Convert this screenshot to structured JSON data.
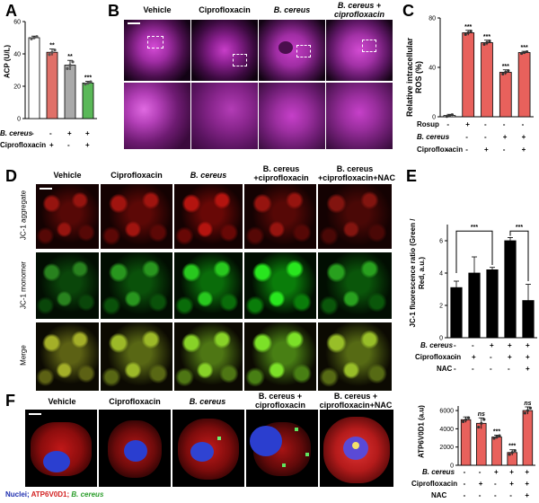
{
  "panels": {
    "A": {
      "letter": "A",
      "ylabel": "ACP (U/L)",
      "yticks": [
        "0",
        "20",
        "40",
        "60"
      ],
      "rows": [
        {
          "label": "B. cereus",
          "marks": [
            "-",
            "-",
            "+",
            "+"
          ]
        },
        {
          "label": "Ciprofloxacin",
          "marks": [
            "-",
            "+",
            "-",
            "+"
          ]
        }
      ],
      "sig": [
        "**",
        "**",
        "***"
      ]
    },
    "B": {
      "letter": "B",
      "headers": [
        "Vehicle",
        "Ciprofloxacin",
        "B. cereus",
        "B. cereus + ciprofloxacin"
      ]
    },
    "C": {
      "letter": "C",
      "ylabel": "Relative intracellular ROS (%)",
      "yticks": [
        "0",
        "40",
        "80"
      ],
      "rows": [
        {
          "label": "Rosup",
          "marks": [
            "-",
            "+",
            "-",
            "-",
            "-"
          ]
        },
        {
          "label": "B. cereus",
          "marks": [
            "-",
            "-",
            "-",
            "+",
            "+"
          ]
        },
        {
          "label": "Ciprofloxacin",
          "marks": [
            "-",
            "-",
            "+",
            "-",
            "+"
          ]
        }
      ],
      "sig": [
        "***",
        "***",
        "***",
        "***"
      ]
    },
    "D": {
      "letter": "D",
      "headers": [
        "Vehicle",
        "Ciprofloxacin",
        "B. cereus",
        "B. cereus +ciprofloxacin",
        "B. cereus +ciprofloxacin+NAC"
      ],
      "rowlabels": [
        "JC-1 aggregate",
        "JC-1 monomer",
        "Merge"
      ]
    },
    "E": {
      "letter": "E",
      "ylabel": "JC-1 fluorescence ratio (Green / Red, a.u.)",
      "yticks": [
        "0",
        "2",
        "4",
        "6"
      ],
      "rows": [
        {
          "label": "B. cereus",
          "marks": [
            "-",
            "-",
            "+",
            "+",
            "+"
          ]
        },
        {
          "label": "Ciprofloxacin",
          "marks": [
            "-",
            "+",
            "-",
            "+",
            "+"
          ]
        },
        {
          "label": "NAC",
          "marks": [
            "-",
            "-",
            "-",
            "-",
            "+"
          ]
        }
      ],
      "sig": [
        "***",
        "***"
      ]
    },
    "F": {
      "letter": "F",
      "headers": [
        "Vehicle",
        "Ciprofloxacin",
        "B. cereus",
        "B. cereus + ciprofloxacin",
        "B. cereus + ciprofloxacin+NAC"
      ],
      "legend": {
        "nuclei": "Nuclei;",
        "atp": "ATP6V0D1;",
        "bc": "B. cereus"
      },
      "ylabel": "ATP6V0D1 (a.u)",
      "yticks": [
        "0",
        "2000",
        "4000",
        "6000"
      ],
      "rows": [
        {
          "label": "B. cereus",
          "marks": [
            "-",
            "-",
            "+",
            "+",
            "+"
          ]
        },
        {
          "label": "Ciprofloxacin",
          "marks": [
            "-",
            "+",
            "-",
            "+",
            "+"
          ]
        },
        {
          "label": "NAC",
          "marks": [
            "-",
            "-",
            "-",
            "-",
            "+"
          ]
        }
      ],
      "sig": [
        "ns",
        "***",
        "***",
        "ns"
      ]
    }
  },
  "chart_data": [
    {
      "type": "bar",
      "panel": "A",
      "categories": [
        "1",
        "2",
        "3",
        "4"
      ],
      "values": [
        50,
        41,
        33,
        22
      ],
      "errors": [
        1,
        2,
        3,
        1
      ],
      "ylim": [
        0,
        60
      ],
      "ylabel": "ACP (U/L)",
      "colors": [
        "#ffffff",
        "#e07068",
        "#a9a9a9",
        "#5ab858"
      ]
    },
    {
      "type": "bar",
      "panel": "C",
      "categories": [
        "1",
        "2",
        "3",
        "4",
        "5"
      ],
      "values": [
        1,
        68,
        60,
        36,
        52
      ],
      "errors": [
        1,
        2,
        2,
        2,
        1
      ],
      "ylim": [
        0,
        80
      ],
      "ylabel": "Relative intracellular ROS (%)",
      "colors": [
        "#ffffff",
        "#e8615c",
        "#e8615c",
        "#e8615c",
        "#e8615c"
      ]
    },
    {
      "type": "bar",
      "panel": "E",
      "categories": [
        "1",
        "2",
        "3",
        "4",
        "5"
      ],
      "values": [
        3.1,
        4.0,
        4.2,
        6.0,
        2.3
      ],
      "errors": [
        0.4,
        1.0,
        0.15,
        0.2,
        1.0
      ],
      "ylim": [
        0,
        7
      ],
      "ylabel": "JC-1 fluorescence ratio (Green / Red, a.u.)",
      "colors": [
        "#000000",
        "#000000",
        "#000000",
        "#000000",
        "#000000"
      ]
    },
    {
      "type": "bar",
      "panel": "F",
      "categories": [
        "1",
        "2",
        "3",
        "4",
        "5"
      ],
      "values": [
        5000,
        4600,
        3100,
        1400,
        6000
      ],
      "errors": [
        300,
        600,
        200,
        300,
        400
      ],
      "ylim": [
        0,
        6500
      ],
      "ylabel": "ATP6V0D1 (a.u)",
      "colors": [
        "#e8615c",
        "#e8615c",
        "#e8615c",
        "#e8615c",
        "#e8615c"
      ]
    }
  ]
}
